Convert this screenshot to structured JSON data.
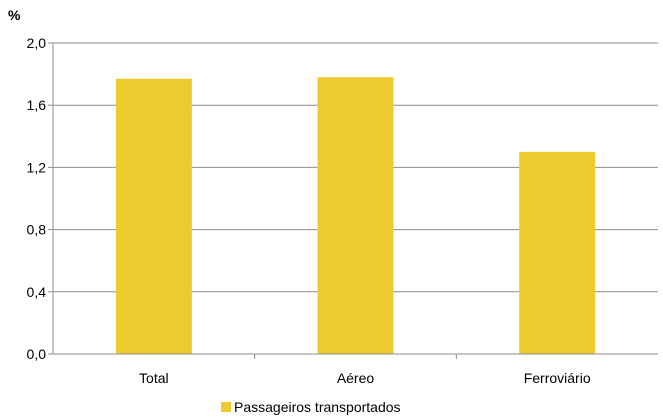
{
  "chart_data": {
    "type": "bar",
    "unit": "%",
    "categories": [
      "Total",
      "Aéreo",
      "Ferroviário"
    ],
    "series": [
      {
        "name": "Passageiros transportados",
        "values": [
          1.77,
          1.78,
          1.3
        ],
        "color": "#EBCB2D"
      }
    ],
    "ylim": [
      0,
      2.0
    ],
    "yticks": [
      {
        "value": 0.0,
        "label": "0,0"
      },
      {
        "value": 0.4,
        "label": "0,4"
      },
      {
        "value": 0.8,
        "label": "0,8"
      },
      {
        "value": 1.2,
        "label": "1,2"
      },
      {
        "value": 1.6,
        "label": "1,6"
      },
      {
        "value": 2.0,
        "label": "2,0"
      }
    ],
    "grid": true,
    "legend_position": "bottom"
  }
}
